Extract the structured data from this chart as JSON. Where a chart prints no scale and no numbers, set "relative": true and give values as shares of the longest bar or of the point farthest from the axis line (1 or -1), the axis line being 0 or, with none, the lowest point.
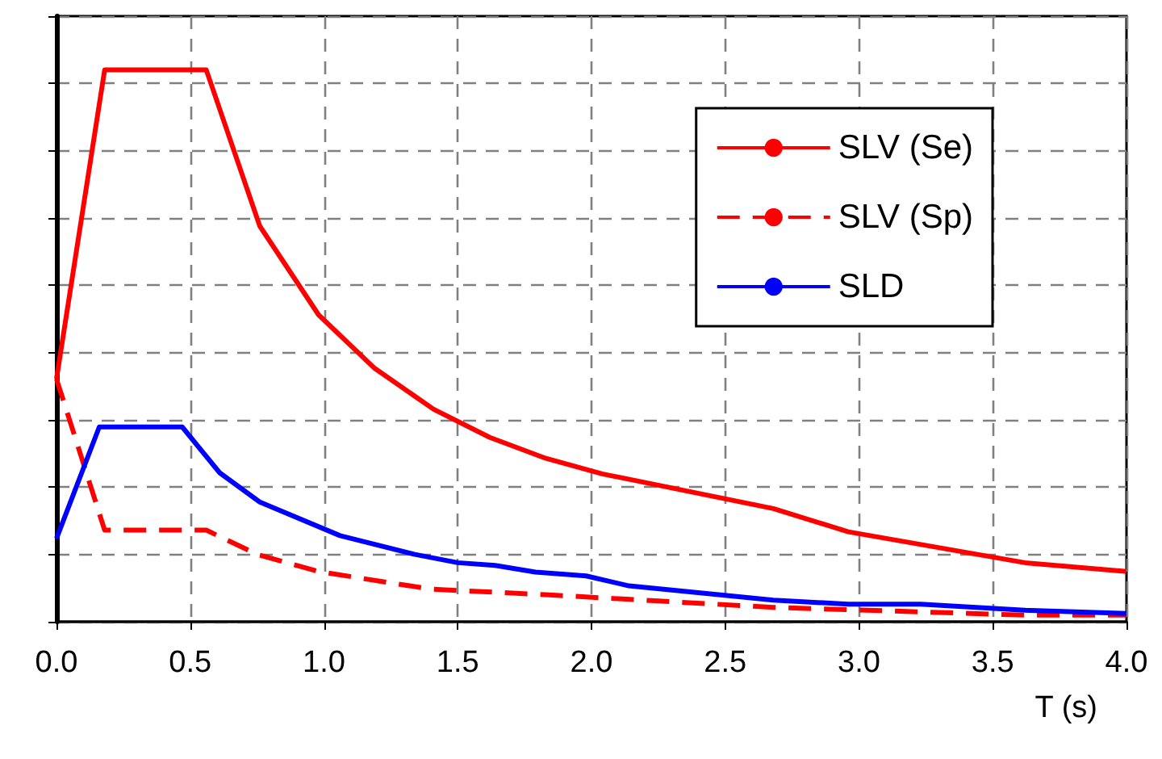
{
  "chart_data": {
    "type": "line",
    "relative": true,
    "xlabel": "T (s)",
    "xlim": [
      0,
      4
    ],
    "xticks": [
      {
        "value": 0,
        "label": "0.0"
      },
      {
        "value": 0.5,
        "label": "0.5"
      },
      {
        "value": 1,
        "label": "1.0"
      },
      {
        "value": 1.5,
        "label": "1.5"
      },
      {
        "value": 2,
        "label": "2.0"
      },
      {
        "value": 2.5,
        "label": "2.5"
      },
      {
        "value": 3,
        "label": "3.0"
      },
      {
        "value": 3.5,
        "label": "3.5"
      },
      {
        "value": 4,
        "label": "4.0"
      }
    ],
    "grid": true,
    "legend": "top right",
    "marker": "none",
    "series": [
      {
        "name": "SLV (Se)",
        "color": "#ff0000",
        "line_style": "solid",
        "x": [
          0,
          0.18,
          0.56,
          0.76,
          0.98,
          1.19,
          1.41,
          1.62,
          1.83,
          2.04,
          2.68,
          2.96,
          3.62,
          4.0
        ],
        "values": [
          0.44,
          1,
          1,
          0.717,
          0.556,
          0.459,
          0.385,
          0.334,
          0.296,
          0.268,
          0.205,
          0.163,
          0.107,
          0.091
        ]
      },
      {
        "name": "SLV (Sp)",
        "color": "#ff0000",
        "line_style": "dashed",
        "x": [
          0,
          0.18,
          0.56,
          0.75,
          0.98,
          1.4,
          1.83,
          2.68,
          3.62,
          4.0
        ],
        "values": [
          0.44,
          0.166,
          0.166,
          0.122,
          0.091,
          0.059,
          0.049,
          0.026,
          0.012,
          0.012
        ]
      },
      {
        "name": "SLD",
        "color": "#0000ff",
        "line_style": "solid",
        "x": [
          0,
          0.16,
          0.47,
          0.61,
          0.76,
          1.06,
          1.34,
          1.5,
          1.64,
          1.79,
          1.98,
          2.14,
          2.68,
          2.96,
          3.23,
          3.62,
          4.0
        ],
        "values": [
          0.151,
          0.353,
          0.353,
          0.27,
          0.217,
          0.156,
          0.122,
          0.107,
          0.102,
          0.09,
          0.083,
          0.065,
          0.039,
          0.032,
          0.032,
          0.021,
          0.015
        ]
      }
    ]
  }
}
